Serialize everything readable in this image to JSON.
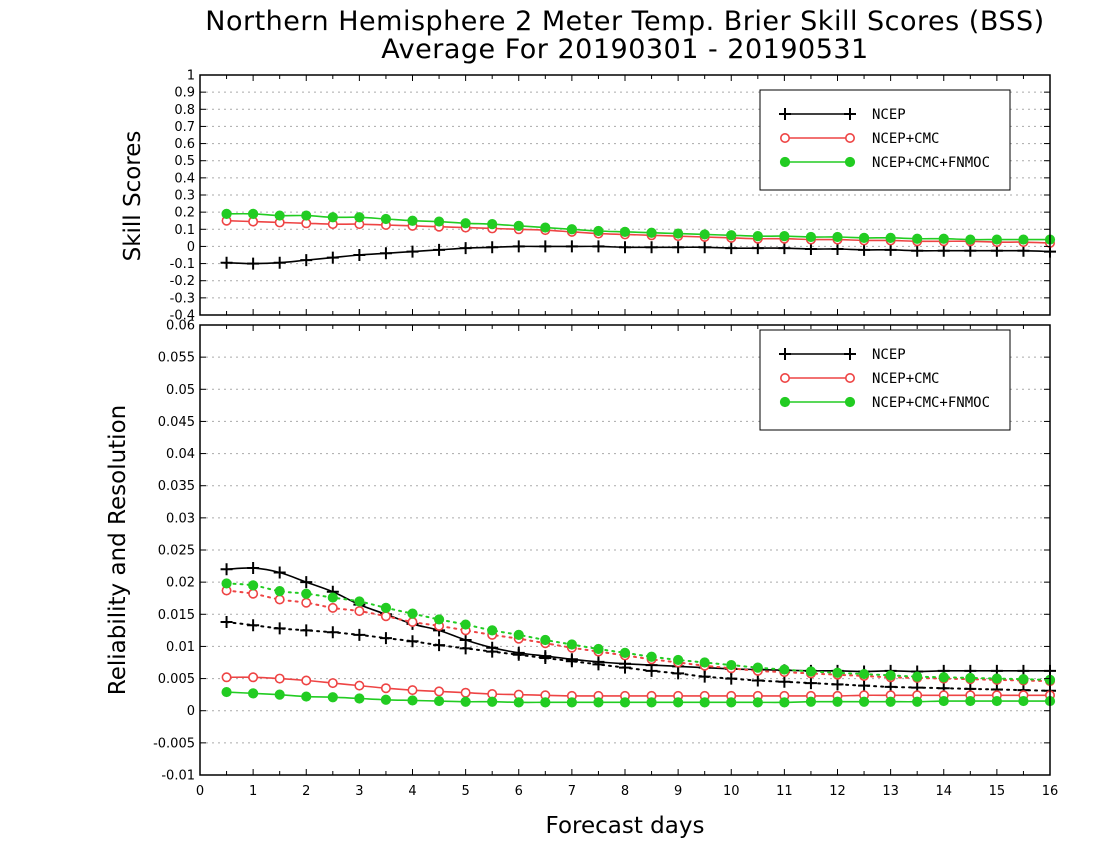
{
  "title_line1": "Northern Hemisphere 2 Meter Temp. Brier Skill Scores (BSS)",
  "title_line2": "Average For 20190301 - 20190531",
  "colors": {
    "NCEP": "#000000",
    "NCEP+CMC": "#ee4444",
    "NCEP+CMC+FNMOC": "#22cc22",
    "grid": "#aaaaaa"
  },
  "chart_data": [
    {
      "type": "line",
      "panel": "top",
      "ylabel": "Skill Scores",
      "xlabel": "",
      "xlim": [
        0,
        16
      ],
      "ylim": [
        -0.4,
        1
      ],
      "yticks": [
        1,
        0.9,
        0.8,
        0.7,
        0.6,
        0.5,
        0.4,
        0.3,
        0.2,
        0.1,
        0,
        -0.1,
        -0.2,
        -0.3,
        -0.4
      ],
      "grid": true,
      "legend_position": "top-right",
      "x": [
        0.5,
        1,
        1.5,
        2,
        2.5,
        3,
        3.5,
        4,
        4.5,
        5,
        5.5,
        6,
        6.5,
        7,
        7.5,
        8,
        8.5,
        9,
        9.5,
        10,
        10.5,
        11,
        11.5,
        12,
        12.5,
        13,
        13.5,
        14,
        14.5,
        15,
        15.5,
        16
      ],
      "series": [
        {
          "name": "NCEP",
          "marker": "plus",
          "line": "solid",
          "values": [
            -0.095,
            -0.1,
            -0.095,
            -0.08,
            -0.065,
            -0.05,
            -0.04,
            -0.03,
            -0.02,
            -0.01,
            -0.005,
            0.0,
            0.0,
            0.0,
            0.0,
            -0.005,
            -0.005,
            -0.005,
            -0.005,
            -0.01,
            -0.01,
            -0.01,
            -0.015,
            -0.015,
            -0.02,
            -0.02,
            -0.025,
            -0.025,
            -0.025,
            -0.025,
            -0.025,
            -0.03
          ]
        },
        {
          "name": "NCEP+CMC",
          "marker": "open-circle",
          "line": "solid",
          "values": [
            0.15,
            0.145,
            0.14,
            0.135,
            0.13,
            0.13,
            0.125,
            0.12,
            0.115,
            0.11,
            0.105,
            0.1,
            0.095,
            0.085,
            0.075,
            0.07,
            0.065,
            0.06,
            0.055,
            0.05,
            0.045,
            0.045,
            0.04,
            0.04,
            0.035,
            0.035,
            0.03,
            0.03,
            0.03,
            0.025,
            0.025,
            0.02
          ]
        },
        {
          "name": "NCEP+CMC+FNMOC",
          "marker": "filled-circle",
          "line": "solid",
          "values": [
            0.19,
            0.19,
            0.18,
            0.18,
            0.17,
            0.17,
            0.16,
            0.15,
            0.145,
            0.135,
            0.13,
            0.12,
            0.11,
            0.1,
            0.09,
            0.085,
            0.08,
            0.075,
            0.07,
            0.065,
            0.06,
            0.06,
            0.055,
            0.055,
            0.05,
            0.05,
            0.045,
            0.045,
            0.04,
            0.04,
            0.04,
            0.04
          ]
        }
      ]
    },
    {
      "type": "line",
      "panel": "bottom",
      "ylabel": "Reliability and Resolution",
      "xlabel": "Forecast days",
      "xlim": [
        0,
        16
      ],
      "ylim": [
        -0.01,
        0.06
      ],
      "yticks": [
        0.06,
        0.055,
        0.05,
        0.045,
        0.04,
        0.035,
        0.03,
        0.025,
        0.02,
        0.015,
        0.01,
        0.005,
        0,
        -0.005,
        -0.01
      ],
      "xticks": [
        0,
        1,
        2,
        3,
        4,
        5,
        6,
        7,
        8,
        9,
        10,
        11,
        12,
        13,
        14,
        15,
        16
      ],
      "grid": true,
      "legend_position": "top-right",
      "x": [
        0.5,
        1,
        1.5,
        2,
        2.5,
        3,
        3.5,
        4,
        4.5,
        5,
        5.5,
        6,
        6.5,
        7,
        7.5,
        8,
        8.5,
        9,
        9.5,
        10,
        10.5,
        11,
        11.5,
        12,
        12.5,
        13,
        13.5,
        14,
        14.5,
        15,
        15.5,
        16
      ],
      "series": [
        {
          "name": "NCEP",
          "marker": "plus",
          "line": "solid",
          "values": [
            0.022,
            0.0222,
            0.0215,
            0.02,
            0.0185,
            0.0165,
            0.015,
            0.0135,
            0.0125,
            0.011,
            0.0098,
            0.009,
            0.0085,
            0.008,
            0.0076,
            0.0073,
            0.0071,
            0.0069,
            0.0067,
            0.0065,
            0.0064,
            0.0063,
            0.0062,
            0.0062,
            0.0061,
            0.0062,
            0.0061,
            0.0062,
            0.0062,
            0.0062,
            0.0062,
            0.0062
          ]
        },
        {
          "name": "NCEP",
          "marker": "plus",
          "line": "dotted",
          "values": [
            0.0138,
            0.0133,
            0.0128,
            0.0125,
            0.0122,
            0.0118,
            0.0113,
            0.0108,
            0.0102,
            0.0097,
            0.0092,
            0.0087,
            0.0082,
            0.0077,
            0.0072,
            0.0067,
            0.0062,
            0.0058,
            0.0053,
            0.005,
            0.0047,
            0.0045,
            0.0043,
            0.0041,
            0.0039,
            0.0037,
            0.0036,
            0.0035,
            0.0034,
            0.0033,
            0.0032,
            0.0031
          ]
        },
        {
          "name": "NCEP+CMC",
          "marker": "open-circle",
          "line": "dotted",
          "values": [
            0.0187,
            0.0182,
            0.0173,
            0.0168,
            0.016,
            0.0155,
            0.0147,
            0.0138,
            0.0132,
            0.0125,
            0.0118,
            0.0112,
            0.0105,
            0.0098,
            0.0092,
            0.0086,
            0.008,
            0.0075,
            0.007,
            0.0066,
            0.0062,
            0.006,
            0.0058,
            0.0056,
            0.0054,
            0.0052,
            0.0051,
            0.005,
            0.0049,
            0.0048,
            0.0047,
            0.0046
          ]
        },
        {
          "name": "NCEP+CMC",
          "marker": "open-circle",
          "line": "solid",
          "values": [
            0.0052,
            0.0052,
            0.005,
            0.0047,
            0.0043,
            0.0039,
            0.0035,
            0.0032,
            0.003,
            0.0028,
            0.0026,
            0.0025,
            0.0024,
            0.0023,
            0.0023,
            0.0023,
            0.0023,
            0.0023,
            0.0023,
            0.0023,
            0.0023,
            0.0023,
            0.0023,
            0.0023,
            0.0024,
            0.0024,
            0.0024,
            0.0024,
            0.0024,
            0.0024,
            0.0024,
            0.0024
          ]
        },
        {
          "name": "NCEP+CMC+FNMOC",
          "marker": "filled-circle",
          "line": "dotted",
          "values": [
            0.0198,
            0.0195,
            0.0186,
            0.0182,
            0.0176,
            0.017,
            0.016,
            0.0151,
            0.0142,
            0.0134,
            0.0125,
            0.0118,
            0.011,
            0.0103,
            0.0096,
            0.009,
            0.0084,
            0.0079,
            0.0075,
            0.0071,
            0.0067,
            0.0064,
            0.0061,
            0.0059,
            0.0057,
            0.0055,
            0.0053,
            0.0052,
            0.0051,
            0.005,
            0.0049,
            0.0048
          ]
        },
        {
          "name": "NCEP+CMC+FNMOC",
          "marker": "filled-circle",
          "line": "solid",
          "values": [
            0.0029,
            0.0027,
            0.0025,
            0.0022,
            0.0021,
            0.0019,
            0.0017,
            0.0016,
            0.0015,
            0.0014,
            0.0014,
            0.0013,
            0.0013,
            0.0013,
            0.0013,
            0.0013,
            0.0013,
            0.0013,
            0.0013,
            0.0013,
            0.0013,
            0.0013,
            0.0014,
            0.0014,
            0.0014,
            0.0014,
            0.0014,
            0.0015,
            0.0015,
            0.0015,
            0.0015,
            0.0015
          ]
        }
      ]
    }
  ]
}
